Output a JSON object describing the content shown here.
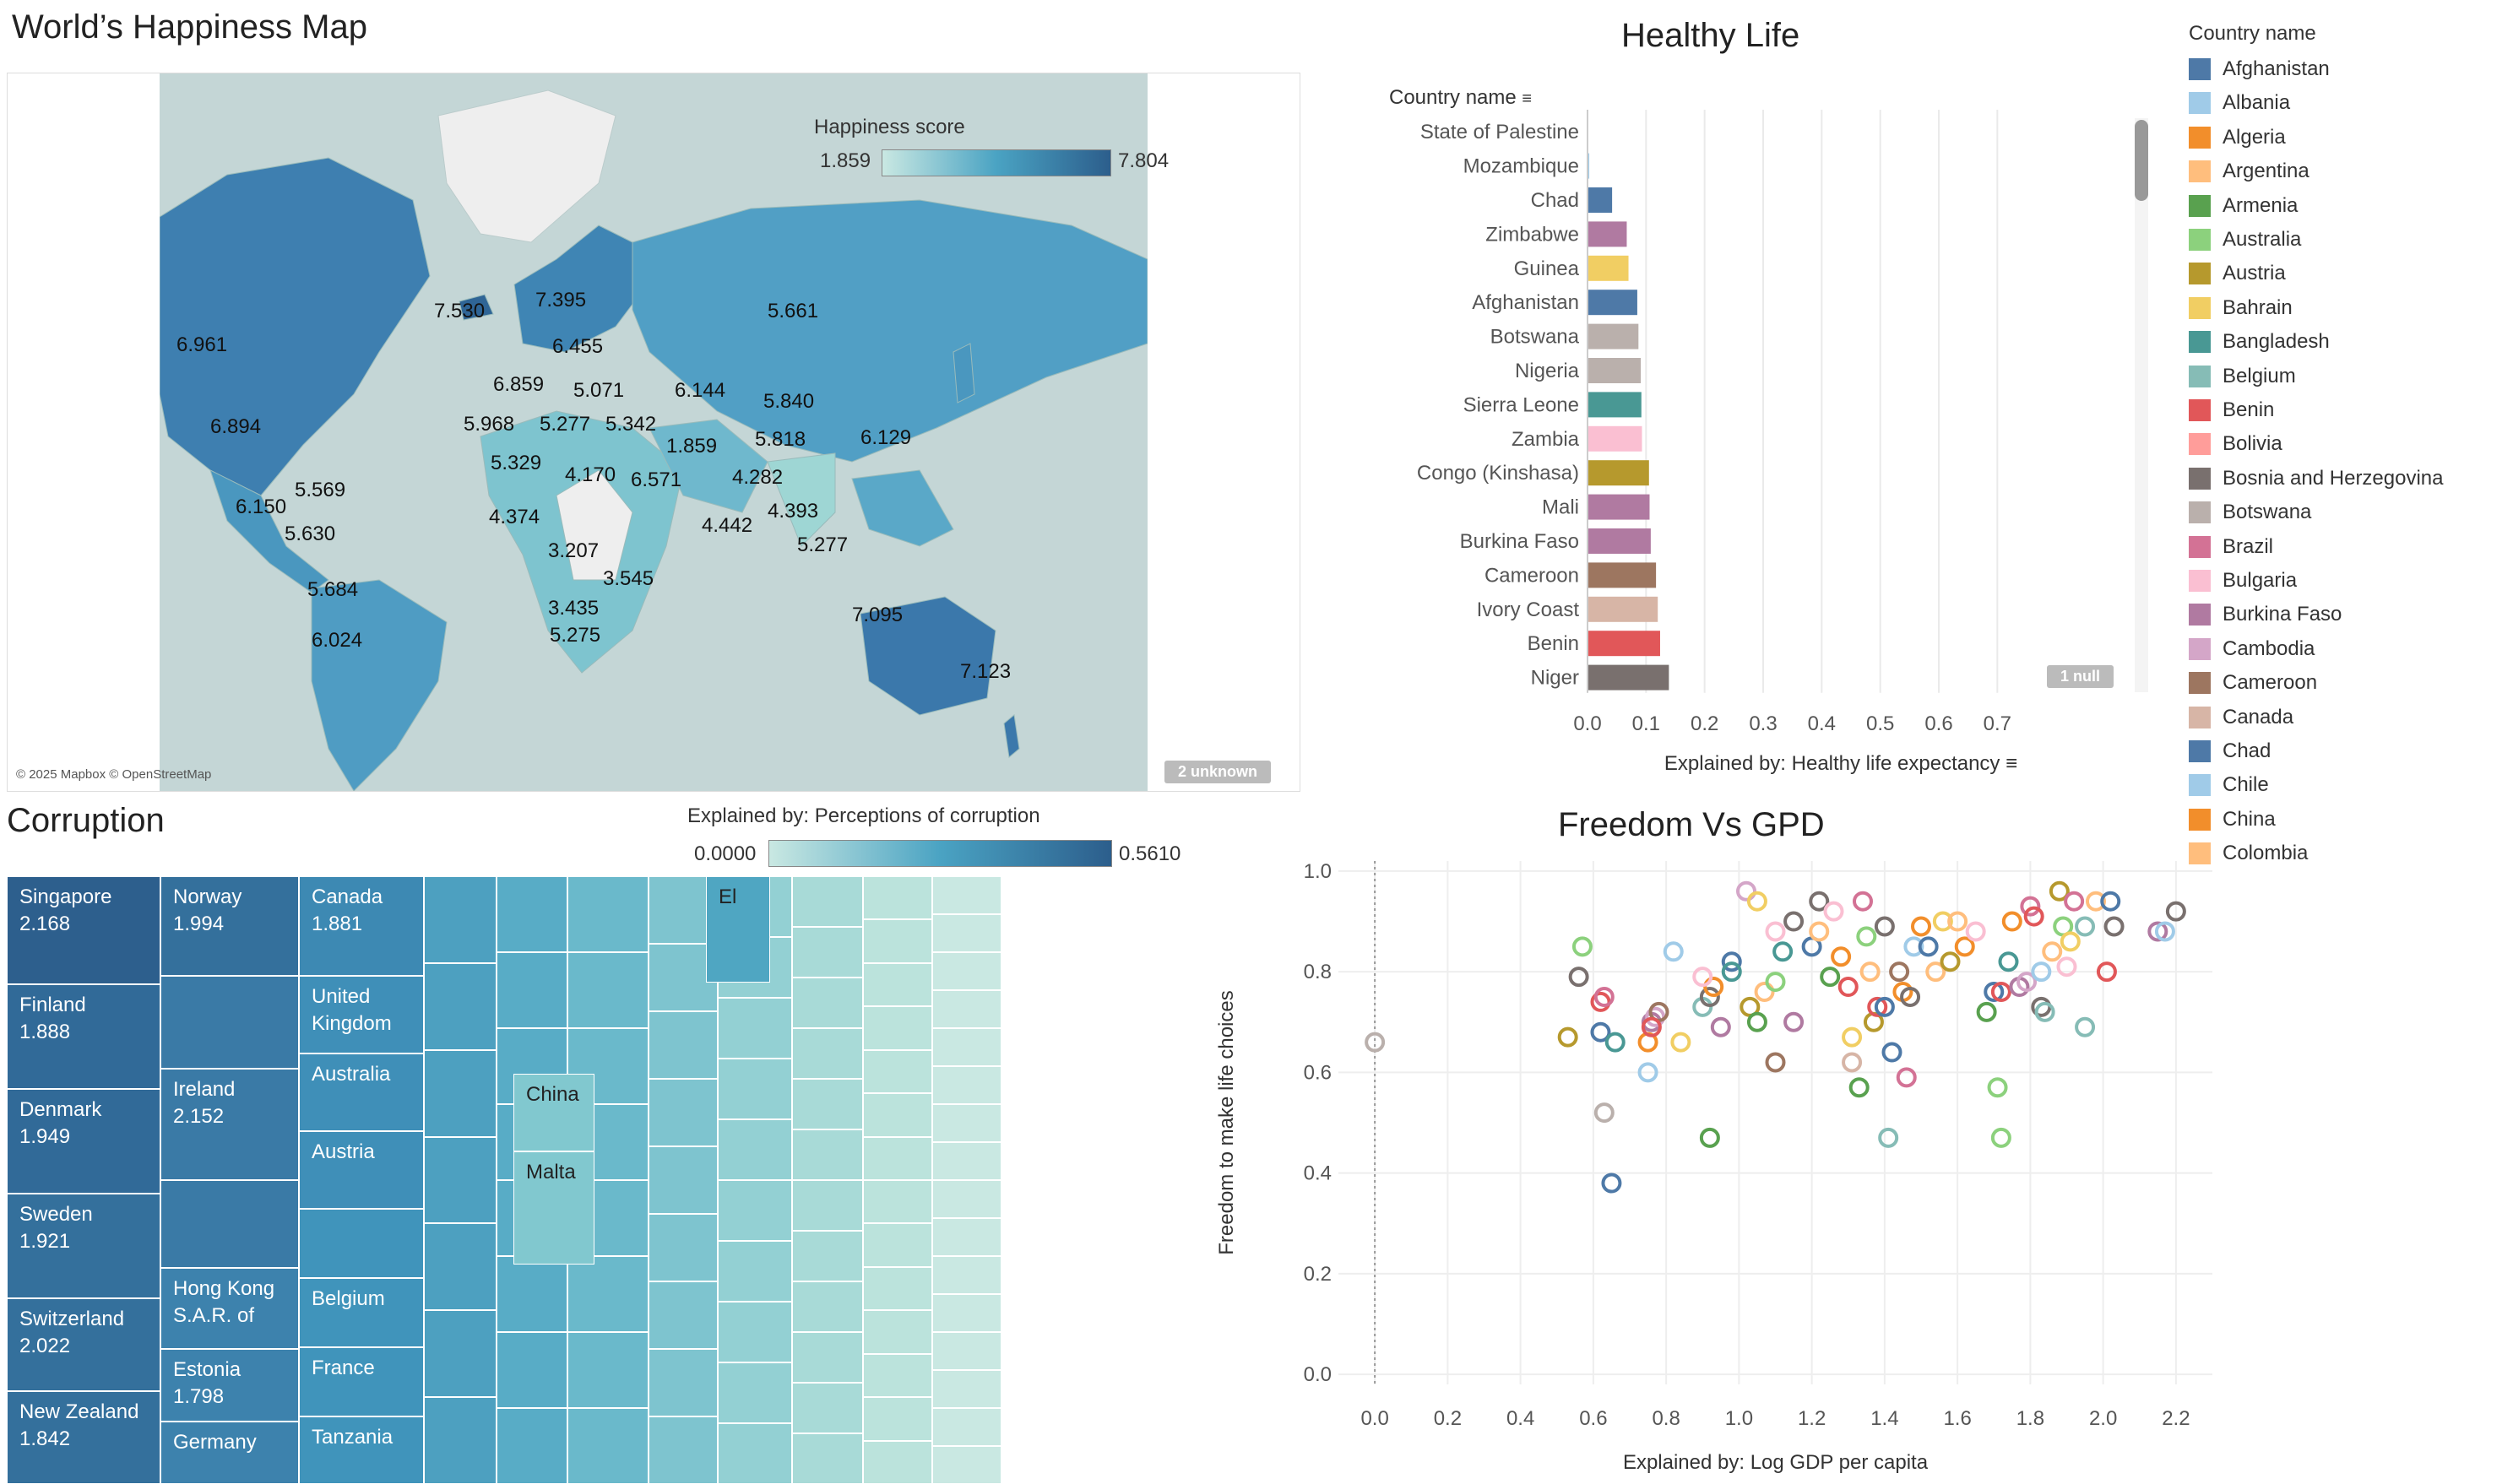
{
  "map": {
    "title": "World’s Happiness Map",
    "legend_title": "Happiness score",
    "legend_min": "1.859",
    "legend_max": "7.804",
    "attribution": "© 2025 Mapbox © OpenStreetMap",
    "unknown_badge": "2 unknown",
    "labels": [
      "6.961",
      "6.894",
      "7.530",
      "7.395",
      "6.455",
      "5.661",
      "6.859",
      "5.071",
      "6.144",
      "5.840",
      "5.968",
      "5.277",
      "5.342",
      "1.859",
      "5.818",
      "6.129",
      "5.329",
      "4.170",
      "6.571",
      "4.282",
      "5.569",
      "6.150",
      "4.374",
      "4.442",
      "4.393",
      "5.630",
      "3.207",
      "3.545",
      "5.277",
      "5.684",
      "3.435",
      "7.095",
      "5.275",
      "6.024",
      "7.123"
    ],
    "colors": {
      "low": "#c9e8e2",
      "mid": "#4aa3c3",
      "high": "#2c5e8c",
      "land_nodata": "#eeeeee",
      "water": "#c4d6d6"
    }
  },
  "healthy": {
    "title": "Healthy Life",
    "row_header": "Country name",
    "null_badge": "1 null",
    "chart_data": {
      "type": "bar",
      "orientation": "horizontal",
      "title": "Healthy Life",
      "xlabel": "Explained by: Healthy life expectancy",
      "ylabel": "Country name",
      "xlim": [
        0,
        0.75
      ],
      "xticks": [
        "0.0",
        "0.1",
        "0.2",
        "0.3",
        "0.4",
        "0.5",
        "0.6",
        "0.7"
      ],
      "categories": [
        "State of Palestine",
        "Mozambique",
        "Chad",
        "Zimbabwe",
        "Guinea",
        "Afghanistan",
        "Botswana",
        "Nigeria",
        "Sierra Leone",
        "Zambia",
        "Congo (Kinshasa)",
        "Mali",
        "Burkina Faso",
        "Cameroon",
        "Ivory Coast",
        "Benin",
        "Niger"
      ],
      "values": [
        0.0,
        0.003,
        0.042,
        0.067,
        0.07,
        0.085,
        0.087,
        0.091,
        0.092,
        0.093,
        0.105,
        0.106,
        0.108,
        0.117,
        0.12,
        0.124,
        0.139
      ],
      "colors": [
        "#4e79a7",
        "#a0cbe8",
        "#4e79a7",
        "#b07aa1",
        "#f1ce63",
        "#4e79a7",
        "#bab0ac",
        "#bab0ac",
        "#499894",
        "#fabfd2",
        "#b6992d",
        "#b07aa1",
        "#b07aa1",
        "#9d7660",
        "#d7b5a6",
        "#e15759",
        "#79706e"
      ]
    }
  },
  "country_legend": {
    "title": "Country name",
    "items": [
      {
        "name": "Afghanistan",
        "color": "#4e79a7"
      },
      {
        "name": "Albania",
        "color": "#a0cbe8"
      },
      {
        "name": "Algeria",
        "color": "#f28e2b"
      },
      {
        "name": "Argentina",
        "color": "#ffbe7d"
      },
      {
        "name": "Armenia",
        "color": "#59a14f"
      },
      {
        "name": "Australia",
        "color": "#8cd17d"
      },
      {
        "name": "Austria",
        "color": "#b6992d"
      },
      {
        "name": "Bahrain",
        "color": "#f1ce63"
      },
      {
        "name": "Bangladesh",
        "color": "#499894"
      },
      {
        "name": "Belgium",
        "color": "#86bcb6"
      },
      {
        "name": "Benin",
        "color": "#e15759"
      },
      {
        "name": "Bolivia",
        "color": "#ff9d9a"
      },
      {
        "name": "Bosnia and Herzegovina",
        "color": "#79706e"
      },
      {
        "name": "Botswana",
        "color": "#bab0ac"
      },
      {
        "name": "Brazil",
        "color": "#d37295"
      },
      {
        "name": "Bulgaria",
        "color": "#fabfd2"
      },
      {
        "name": "Burkina Faso",
        "color": "#b07aa1"
      },
      {
        "name": "Cambodia",
        "color": "#d4a6c8"
      },
      {
        "name": "Cameroon",
        "color": "#9d7660"
      },
      {
        "name": "Canada",
        "color": "#d7b5a6"
      },
      {
        "name": "Chad",
        "color": "#4e79a7"
      },
      {
        "name": "Chile",
        "color": "#a0cbe8"
      },
      {
        "name": "China",
        "color": "#f28e2b"
      },
      {
        "name": "Colombia",
        "color": "#ffbe7d"
      }
    ]
  },
  "corruption": {
    "title": "Corruption",
    "legend_title": "Explained by: Perceptions of corruption",
    "legend_min": "0.0000",
    "legend_max": "0.5610",
    "cells": [
      {
        "name": "Singapore",
        "value": "2.168"
      },
      {
        "name": "Finland",
        "value": "1.888"
      },
      {
        "name": "Denmark",
        "value": "1.949"
      },
      {
        "name": "Sweden",
        "value": "1.921"
      },
      {
        "name": "Switzerland",
        "value": "2.022"
      },
      {
        "name": "New Zealand",
        "value": "1.842"
      },
      {
        "name": "Norway",
        "value": "1.994"
      },
      {
        "name": "Ireland",
        "value": "2.152"
      },
      {
        "name": "Hong Kong S.A.R. of",
        "value": ""
      },
      {
        "name": "Estonia",
        "value": "1.798"
      },
      {
        "name": "Germany",
        "value": ""
      },
      {
        "name": "Canada",
        "value": "1.881"
      },
      {
        "name": "United Kingdom",
        "value": ""
      },
      {
        "name": "Australia",
        "value": ""
      },
      {
        "name": "Austria",
        "value": ""
      },
      {
        "name": "Belgium",
        "value": ""
      },
      {
        "name": "France",
        "value": ""
      },
      {
        "name": "Tanzania",
        "value": ""
      },
      {
        "name": "El",
        "value": ""
      },
      {
        "name": "China",
        "value": ""
      },
      {
        "name": "Malta",
        "value": ""
      }
    ]
  },
  "freedom": {
    "chart_data": {
      "type": "scatter",
      "title": "Freedom Vs GPD",
      "xlabel": "Explained by: Log GDP per capita",
      "ylabel": "Freedom to make life choices",
      "xlim": [
        -0.1,
        2.3
      ],
      "ylim": [
        -0.02,
        1.02
      ],
      "xticks": [
        "0.0",
        "0.2",
        "0.4",
        "0.6",
        "0.8",
        "1.0",
        "1.2",
        "1.4",
        "1.6",
        "1.8",
        "2.0",
        "2.2"
      ],
      "yticks": [
        "0.0",
        "0.2",
        "0.4",
        "0.6",
        "0.8",
        "1.0"
      ],
      "points": [
        [
          0.0,
          0.66,
          "#bab0ac"
        ],
        [
          0.57,
          0.85,
          "#8cd17d"
        ],
        [
          0.56,
          0.79,
          "#79706e"
        ],
        [
          0.53,
          0.67,
          "#b6992d"
        ],
        [
          0.63,
          0.52,
          "#bab0ac"
        ],
        [
          0.62,
          0.68,
          "#4e79a7"
        ],
        [
          0.65,
          0.38,
          "#4e79a7"
        ],
        [
          0.62,
          0.74,
          "#e15759"
        ],
        [
          0.63,
          0.75,
          "#d37295"
        ],
        [
          0.66,
          0.66,
          "#499894"
        ],
        [
          0.75,
          0.6,
          "#a0cbe8"
        ],
        [
          0.75,
          0.66,
          "#f28e2b"
        ],
        [
          0.76,
          0.7,
          "#b07aa1"
        ],
        [
          0.77,
          0.71,
          "#d4a6c8"
        ],
        [
          0.78,
          0.72,
          "#9d7660"
        ],
        [
          0.76,
          0.69,
          "#e15759"
        ],
        [
          0.82,
          0.84,
          "#a0cbe8"
        ],
        [
          0.84,
          0.66,
          "#f1ce63"
        ],
        [
          0.9,
          0.73,
          "#86bcb6"
        ],
        [
          0.92,
          0.47,
          "#59a14f"
        ],
        [
          0.92,
          0.75,
          "#79706e"
        ],
        [
          0.93,
          0.77,
          "#f28e2b"
        ],
        [
          0.9,
          0.79,
          "#fabfd2"
        ],
        [
          0.95,
          0.69,
          "#b07aa1"
        ],
        [
          0.98,
          0.82,
          "#4e79a7"
        ],
        [
          0.98,
          0.8,
          "#499894"
        ],
        [
          1.02,
          0.96,
          "#d4a6c8"
        ],
        [
          1.03,
          0.73,
          "#b6992d"
        ],
        [
          1.05,
          0.7,
          "#59a14f"
        ],
        [
          1.05,
          0.94,
          "#f1ce63"
        ],
        [
          1.07,
          0.76,
          "#ffbe7d"
        ],
        [
          1.1,
          0.78,
          "#8cd17d"
        ],
        [
          1.1,
          0.62,
          "#9d7660"
        ],
        [
          1.12,
          0.84,
          "#499894"
        ],
        [
          1.1,
          0.88,
          "#fabfd2"
        ],
        [
          1.15,
          0.9,
          "#79706e"
        ],
        [
          1.15,
          0.7,
          "#b07aa1"
        ],
        [
          1.2,
          0.85,
          "#4e79a7"
        ],
        [
          1.22,
          0.94,
          "#79706e"
        ],
        [
          1.25,
          0.79,
          "#59a14f"
        ],
        [
          1.22,
          0.88,
          "#ffbe7d"
        ],
        [
          1.26,
          0.92,
          "#fabfd2"
        ],
        [
          1.28,
          0.83,
          "#f28e2b"
        ],
        [
          1.3,
          0.77,
          "#e15759"
        ],
        [
          1.31,
          0.62,
          "#d7b5a6"
        ],
        [
          1.31,
          0.67,
          "#f1ce63"
        ],
        [
          1.33,
          0.57,
          "#59a14f"
        ],
        [
          1.34,
          0.94,
          "#d37295"
        ],
        [
          1.35,
          0.87,
          "#8cd17d"
        ],
        [
          1.36,
          0.8,
          "#ffbe7d"
        ],
        [
          1.37,
          0.7,
          "#b6992d"
        ],
        [
          1.38,
          0.73,
          "#e15759"
        ],
        [
          1.4,
          0.89,
          "#79706e"
        ],
        [
          1.4,
          0.73,
          "#4e79a7"
        ],
        [
          1.41,
          0.47,
          "#86bcb6"
        ],
        [
          1.42,
          0.64,
          "#4e79a7"
        ],
        [
          1.44,
          0.8,
          "#9d7660"
        ],
        [
          1.45,
          0.76,
          "#f28e2b"
        ],
        [
          1.46,
          0.59,
          "#d37295"
        ],
        [
          1.47,
          0.75,
          "#79706e"
        ],
        [
          1.48,
          0.85,
          "#a0cbe8"
        ],
        [
          1.5,
          0.89,
          "#f28e2b"
        ],
        [
          1.52,
          0.85,
          "#4e79a7"
        ],
        [
          1.54,
          0.8,
          "#ffbe7d"
        ],
        [
          1.56,
          0.9,
          "#f1ce63"
        ],
        [
          1.58,
          0.82,
          "#b6992d"
        ],
        [
          1.6,
          0.9,
          "#ffbe7d"
        ],
        [
          1.62,
          0.85,
          "#f28e2b"
        ],
        [
          1.65,
          0.88,
          "#fabfd2"
        ],
        [
          1.68,
          0.72,
          "#59a14f"
        ],
        [
          1.7,
          0.76,
          "#4e79a7"
        ],
        [
          1.71,
          0.57,
          "#8cd17d"
        ],
        [
          1.72,
          0.47,
          "#8cd17d"
        ],
        [
          1.72,
          0.76,
          "#e15759"
        ],
        [
          1.74,
          0.82,
          "#499894"
        ],
        [
          1.75,
          0.9,
          "#f28e2b"
        ],
        [
          1.77,
          0.77,
          "#b07aa1"
        ],
        [
          1.79,
          0.78,
          "#d4a6c8"
        ],
        [
          1.8,
          0.93,
          "#d37295"
        ],
        [
          1.81,
          0.91,
          "#e15759"
        ],
        [
          1.83,
          0.8,
          "#a0cbe8"
        ],
        [
          1.83,
          0.73,
          "#79706e"
        ],
        [
          1.84,
          0.72,
          "#86bcb6"
        ],
        [
          1.86,
          0.84,
          "#ffbe7d"
        ],
        [
          1.88,
          0.96,
          "#b6992d"
        ],
        [
          1.89,
          0.89,
          "#8cd17d"
        ],
        [
          1.9,
          0.81,
          "#fabfd2"
        ],
        [
          1.91,
          0.86,
          "#f1ce63"
        ],
        [
          1.92,
          0.94,
          "#d37295"
        ],
        [
          1.95,
          0.89,
          "#86bcb6"
        ],
        [
          1.95,
          0.69,
          "#86bcb6"
        ],
        [
          1.98,
          0.94,
          "#ffbe7d"
        ],
        [
          2.01,
          0.8,
          "#e15759"
        ],
        [
          2.02,
          0.94,
          "#4e79a7"
        ],
        [
          2.03,
          0.89,
          "#79706e"
        ],
        [
          2.15,
          0.88,
          "#b07aa1"
        ],
        [
          2.17,
          0.88,
          "#a0cbe8"
        ],
        [
          2.2,
          0.92,
          "#79706e"
        ]
      ]
    }
  }
}
